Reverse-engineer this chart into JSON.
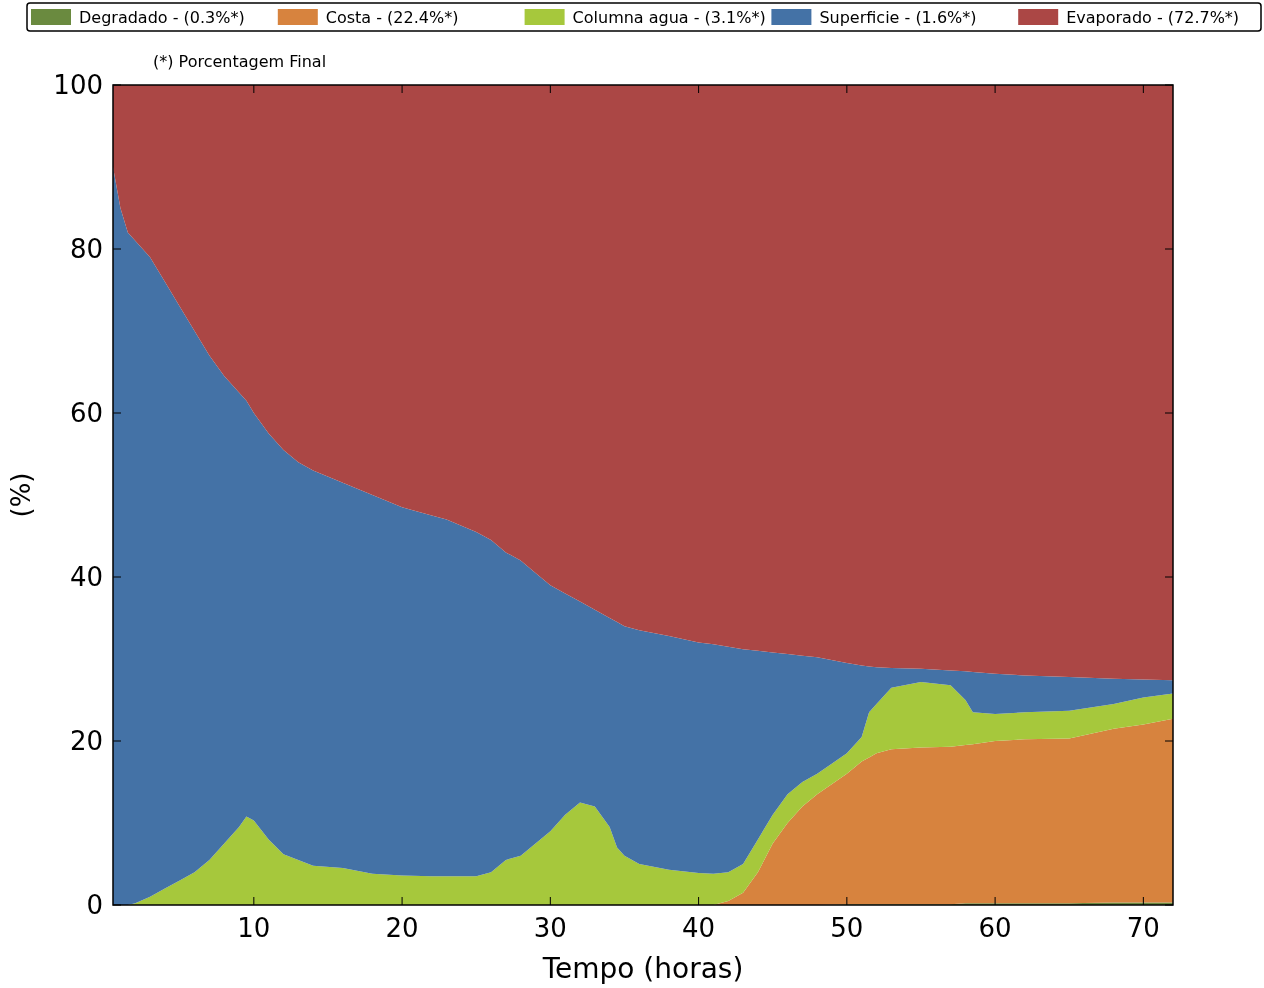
{
  "chart_data": {
    "type": "area",
    "stacked": true,
    "xlabel": "Tempo (horas)",
    "ylabel": "(%)",
    "annotations": [
      "(*) Porcentagem Final"
    ],
    "x": [
      0.5,
      1,
      1.5,
      2,
      3,
      4,
      5,
      6,
      7,
      8,
      9,
      9.5,
      10,
      11,
      12,
      13,
      14,
      16,
      18,
      20,
      22,
      23,
      25,
      26,
      27,
      28,
      29,
      30,
      31,
      32,
      33,
      34,
      34.5,
      35,
      36,
      38,
      40,
      41,
      42,
      43,
      44,
      45,
      46,
      47,
      48,
      50,
      51,
      51.5,
      52,
      53,
      55,
      57,
      58,
      58.5,
      60,
      62,
      65,
      68,
      70,
      72
    ],
    "xlim": [
      0.5,
      72
    ],
    "xticks": [
      10,
      20,
      30,
      40,
      50,
      60,
      70
    ],
    "ylim": [
      0,
      100
    ],
    "yticks": [
      0,
      20,
      40,
      60,
      80,
      100
    ],
    "grid": false,
    "legend": "top",
    "series": [
      {
        "name": "Degradado - (0.3%*)",
        "color": "#6a8a3f",
        "values": [
          0,
          0,
          0,
          0,
          0,
          0,
          0,
          0,
          0,
          0,
          0,
          0,
          0,
          0,
          0,
          0,
          0,
          0,
          0,
          0,
          0,
          0,
          0,
          0,
          0,
          0,
          0,
          0,
          0,
          0,
          0,
          0,
          0,
          0,
          0,
          0,
          0,
          0,
          0,
          0,
          0,
          0,
          0,
          0,
          0,
          0.1,
          0.1,
          0.1,
          0.1,
          0.1,
          0.1,
          0.1,
          0.2,
          0.2,
          0.2,
          0.2,
          0.2,
          0.3,
          0.3,
          0.3
        ]
      },
      {
        "name": "Costa - (22.4%*)",
        "color": "#d7833e",
        "values": [
          0,
          0,
          0,
          0,
          0,
          0,
          0,
          0,
          0,
          0,
          0,
          0,
          0,
          0,
          0,
          0,
          0,
          0,
          0,
          0,
          0,
          0,
          0,
          0,
          0,
          0,
          0,
          0,
          0,
          0,
          0,
          0,
          0,
          0,
          0,
          0,
          0,
          0,
          0.5,
          1.5,
          4,
          7.5,
          10,
          12,
          13.5,
          15.9,
          17.4,
          17.9,
          18.4,
          18.9,
          19.1,
          19.2,
          19.3,
          19.4,
          19.8,
          20,
          20.1,
          21.2,
          21.7,
          22.4
        ]
      },
      {
        "name": "Columna agua - (3.1%*)",
        "color": "#a6c83c",
        "values": [
          0,
          0,
          0,
          0.2,
          1,
          2,
          3,
          4,
          5.5,
          7.5,
          9.5,
          10.8,
          10.3,
          8,
          6.2,
          5.5,
          4.8,
          4.5,
          3.8,
          3.6,
          3.5,
          3.5,
          3.5,
          4,
          5.5,
          6,
          7.5,
          9,
          11,
          12.5,
          12,
          9.5,
          7,
          6,
          5,
          4.3,
          3.9,
          3.8,
          3.5,
          3.5,
          4,
          3.5,
          3.5,
          3,
          2.5,
          2.5,
          3,
          5.5,
          6,
          7.5,
          8,
          7.5,
          5.5,
          3.9,
          3.3,
          3.3,
          3.4,
          3,
          3.3,
          3.1
        ]
      },
      {
        "name": "Superficie - (1.6%*)",
        "color": "#4472a6",
        "values": [
          90,
          85,
          82,
          80.8,
          78,
          74,
          70,
          66,
          61.5,
          57,
          53,
          50.7,
          49.7,
          49.5,
          49.3,
          48.5,
          48.2,
          47,
          46.2,
          44.9,
          44,
          43.5,
          42,
          40.5,
          37.5,
          36,
          33,
          30,
          27,
          24.5,
          24,
          25.5,
          27.5,
          28,
          28.5,
          28.5,
          28.1,
          28,
          27.5,
          26.2,
          23,
          19.8,
          17.1,
          15.4,
          14.2,
          11,
          8.7,
          5.6,
          4.5,
          2.4,
          1.6,
          1.8,
          3.5,
          4.9,
          4.9,
          4.5,
          4.1,
          3.1,
          2.2,
          1.6
        ]
      },
      {
        "name": "Evaporado - (72.7%*)",
        "color": "#ab4745",
        "values": [
          10,
          15,
          18,
          19,
          21,
          24,
          27,
          30,
          33,
          35.5,
          37.5,
          38.5,
          40,
          42.5,
          44.5,
          46,
          47,
          48.5,
          50,
          51.5,
          52.5,
          53,
          54.5,
          55.5,
          57,
          58,
          59.5,
          61,
          62,
          63,
          64,
          65,
          65.5,
          66,
          66.5,
          67.2,
          68,
          68.2,
          68.5,
          68.8,
          69,
          69.2,
          69.4,
          69.6,
          69.8,
          70.5,
          70.8,
          70.9,
          71,
          71.1,
          71.2,
          71.4,
          71.5,
          71.6,
          71.8,
          72,
          72.2,
          72.4,
          72.5,
          72.6
        ]
      }
    ]
  }
}
